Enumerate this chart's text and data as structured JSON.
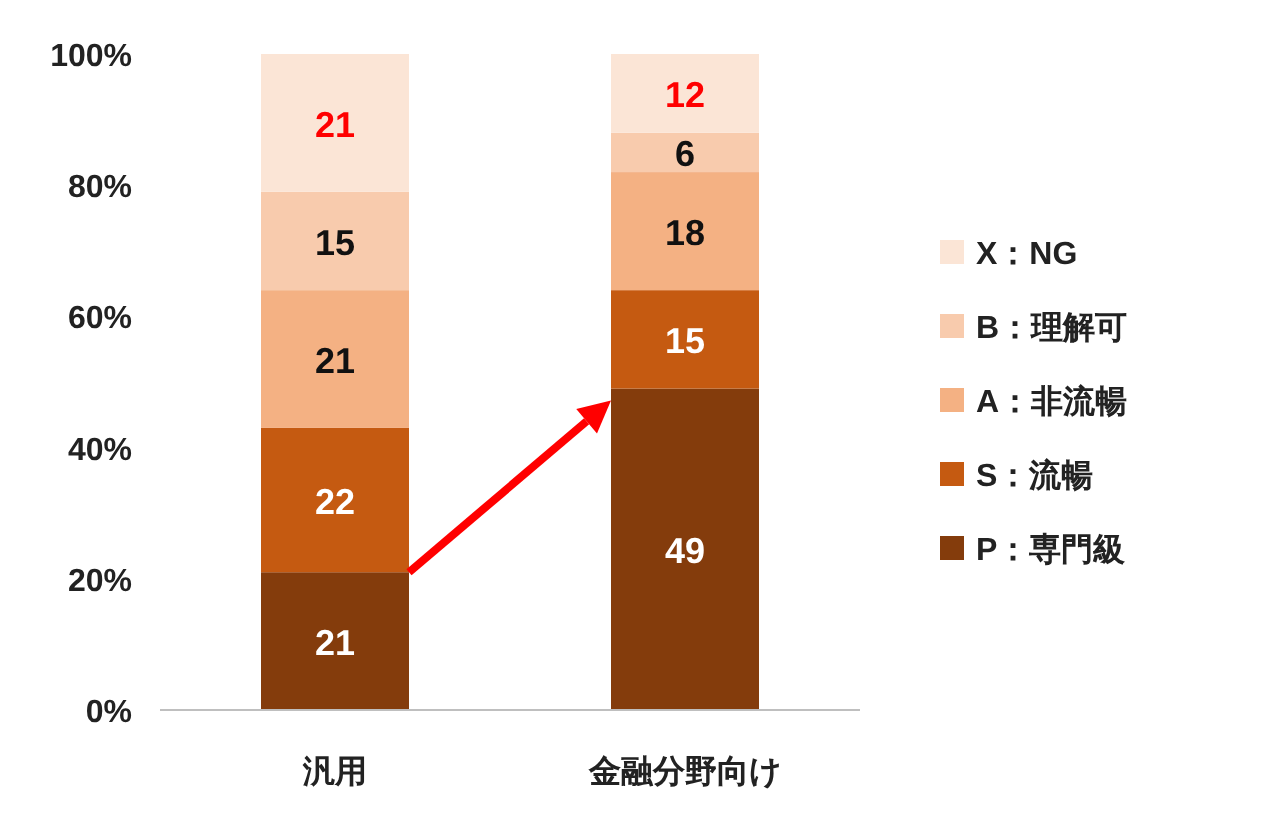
{
  "chart_data": {
    "type": "bar",
    "stacked": true,
    "categories": [
      "汎用",
      "金融分野向け"
    ],
    "series": [
      {
        "name": "P：専門級",
        "color": "#843c0c",
        "values": [
          21,
          49
        ]
      },
      {
        "name": "S：流暢",
        "color": "#c55a11",
        "values": [
          22,
          15
        ]
      },
      {
        "name": "A：非流暢",
        "color": "#f4b183",
        "values": [
          21,
          18
        ]
      },
      {
        "name": "B：理解可",
        "color": "#f8cbad",
        "values": [
          15,
          6
        ]
      },
      {
        "name": "X：NG",
        "color": "#fbe5d6",
        "values": [
          21,
          12
        ]
      }
    ],
    "ylim": [
      0,
      100
    ],
    "yticks": [
      {
        "value": 0,
        "label": "0%"
      },
      {
        "value": 20,
        "label": "20%"
      },
      {
        "value": 40,
        "label": "40%"
      },
      {
        "value": 60,
        "label": "60%"
      },
      {
        "value": 80,
        "label": "80%"
      },
      {
        "value": 100,
        "label": "100%"
      }
    ],
    "data_labels": true,
    "legend": "right",
    "grid": false
  }
}
